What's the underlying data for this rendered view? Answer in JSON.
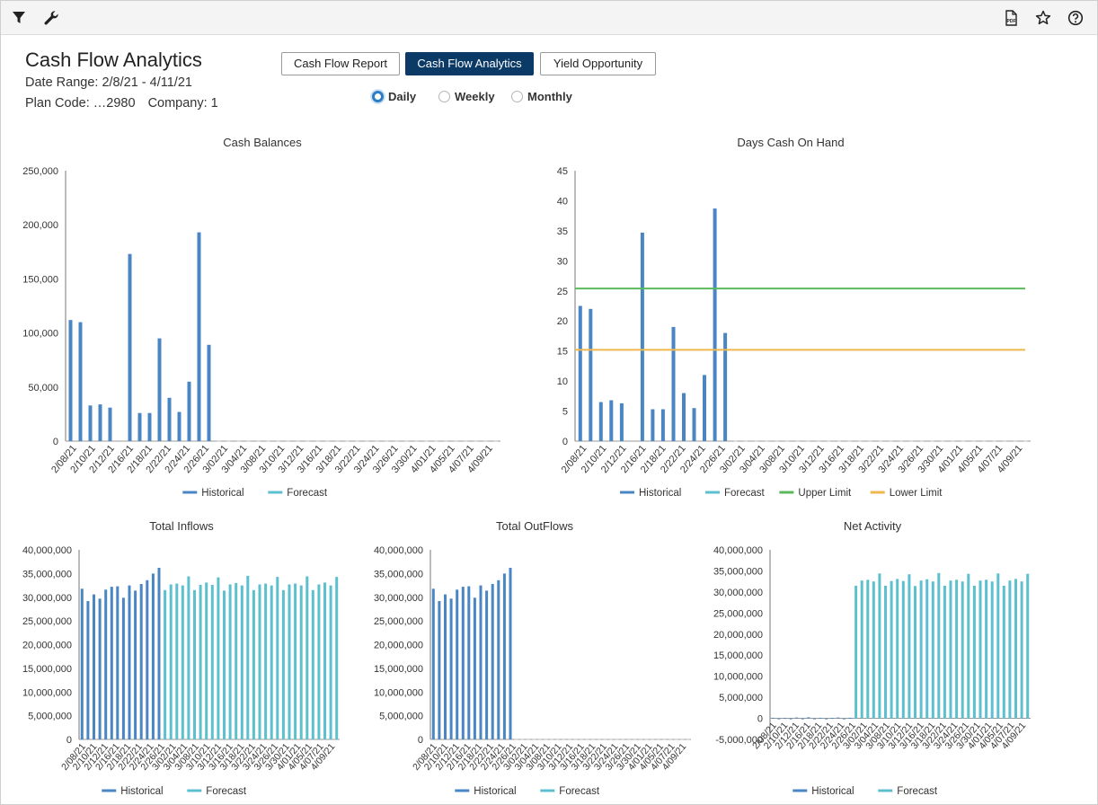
{
  "toolbar": {
    "icons": [
      "filter-icon",
      "wrench-icon",
      "pdf-export-icon",
      "star-icon",
      "help-icon"
    ]
  },
  "header": {
    "title": "Cash Flow Analytics",
    "date_range": "Date Range: 2/8/21 - 4/11/21",
    "plan_code": "Plan Code: …2980",
    "company": "Company: 1"
  },
  "tabs": [
    {
      "label": "Cash Flow Report",
      "active": false
    },
    {
      "label": "Cash Flow Analytics",
      "active": true
    },
    {
      "label": "Yield Opportunity",
      "active": false
    }
  ],
  "periods": [
    {
      "label": "Daily",
      "selected": true
    },
    {
      "label": "Weekly",
      "selected": false
    },
    {
      "label": "Monthly",
      "selected": false
    }
  ],
  "colors": {
    "historical": "#4a86c4",
    "forecast": "#5cc0cf",
    "upper_limit": "#5cb85c",
    "lower_limit": "#f0b74e",
    "accent": "#0b3a66"
  },
  "chart_data": [
    {
      "id": "cash-balances",
      "type": "bar",
      "title": "Cash Balances",
      "x_ticks": [
        "2/08/21",
        "2/10/21",
        "2/12/21",
        "2/16/21",
        "2/18/21",
        "2/22/21",
        "2/24/21",
        "2/26/21",
        "3/02/21",
        "3/04/21",
        "3/08/21",
        "3/10/21",
        "3/12/21",
        "3/16/21",
        "3/18/21",
        "3/22/21",
        "3/24/21",
        "3/26/21",
        "3/30/21",
        "4/01/21",
        "4/05/21",
        "4/07/21",
        "4/09/21"
      ],
      "y_ticks": [
        "0",
        "50,000",
        "100,000",
        "150,000",
        "200,000",
        "250,000"
      ],
      "ylim": [
        0,
        250000
      ],
      "series": [
        {
          "name": "Historical",
          "values": [
            112000,
            110000,
            33000,
            34000,
            31000,
            0,
            173000,
            26000,
            26000,
            95000,
            40000,
            27000,
            55000,
            193000,
            89000
          ]
        },
        {
          "name": "Forecast",
          "values": []
        }
      ]
    },
    {
      "id": "days-cash-on-hand",
      "type": "bar",
      "title": "Days Cash On Hand",
      "x_ticks": [
        "2/08/21",
        "2/10/21",
        "2/12/21",
        "2/16/21",
        "2/18/21",
        "2/22/21",
        "2/24/21",
        "2/26/21",
        "3/02/21",
        "3/04/21",
        "3/08/21",
        "3/10/21",
        "3/12/21",
        "3/16/21",
        "3/18/21",
        "3/22/21",
        "3/24/21",
        "3/26/21",
        "3/30/21",
        "4/01/21",
        "4/05/21",
        "4/07/21",
        "4/09/21"
      ],
      "y_ticks": [
        "0",
        "5",
        "10",
        "15",
        "20",
        "25",
        "30",
        "35",
        "40",
        "45"
      ],
      "ylim": [
        0,
        45
      ],
      "series": [
        {
          "name": "Historical",
          "values": [
            22.5,
            22,
            6.5,
            6.8,
            6.3,
            0,
            34.7,
            5.3,
            5.3,
            19,
            8,
            5.5,
            11,
            38.7,
            18
          ]
        },
        {
          "name": "Forecast",
          "values": []
        },
        {
          "name": "Upper Limit",
          "value": 25.4
        },
        {
          "name": "Lower Limit",
          "value": 15.2
        }
      ]
    },
    {
      "id": "total-inflows",
      "type": "bar",
      "title": "Total Inflows",
      "x_ticks": [
        "2/08/21",
        "2/10/21",
        "2/12/21",
        "2/16/21",
        "2/18/21",
        "2/22/21",
        "2/24/21",
        "2/26/21",
        "3/02/21",
        "3/04/21",
        "3/08/21",
        "3/10/21",
        "3/12/21",
        "3/16/21",
        "3/18/21",
        "3/22/21",
        "3/24/21",
        "3/26/21",
        "3/30/21",
        "4/01/21",
        "4/05/21",
        "4/07/21",
        "4/09/21"
      ],
      "y_ticks": [
        "0",
        "5,000,000",
        "10,000,000",
        "15,000,000",
        "20,000,000",
        "25,000,000",
        "30,000,000",
        "35,000,000",
        "40,000,000"
      ],
      "ylim": [
        0,
        40000000
      ],
      "series": [
        {
          "name": "Historical",
          "values": [
            31800000,
            29200000,
            30600000,
            29700000,
            31600000,
            32200000,
            32300000,
            29900000,
            32500000,
            31400000,
            32800000,
            33600000,
            35000000,
            36200000
          ]
        },
        {
          "name": "Forecast",
          "values": [
            31500000,
            32700000,
            32900000,
            32500000,
            34400000,
            31500000,
            32600000,
            33100000,
            32600000,
            34200000,
            31400000,
            32700000,
            33000000,
            32500000,
            34500000,
            31500000,
            32700000,
            32900000,
            32500000,
            34300000,
            31500000,
            32700000,
            32900000,
            32500000,
            34400000,
            31500000,
            32700000,
            33100000,
            32500000,
            34300000
          ]
        }
      ]
    },
    {
      "id": "total-outflows",
      "type": "bar",
      "title": "Total OutFlows",
      "x_ticks": [
        "2/08/21",
        "2/10/21",
        "2/12/21",
        "2/16/21",
        "2/18/21",
        "2/22/21",
        "2/24/21",
        "2/26/21",
        "3/02/21",
        "3/04/21",
        "3/08/21",
        "3/10/21",
        "3/12/21",
        "3/16/21",
        "3/18/21",
        "3/22/21",
        "3/24/21",
        "3/26/21",
        "3/30/21",
        "4/01/21",
        "4/05/21",
        "4/07/21",
        "4/09/21"
      ],
      "y_ticks": [
        "0",
        "5,000,000",
        "10,000,000",
        "15,000,000",
        "20,000,000",
        "25,000,000",
        "30,000,000",
        "35,000,000",
        "40,000,000"
      ],
      "ylim": [
        0,
        40000000
      ],
      "series": [
        {
          "name": "Historical",
          "values": [
            31800000,
            29200000,
            30600000,
            29700000,
            31600000,
            32200000,
            32300000,
            29900000,
            32500000,
            31400000,
            32800000,
            33600000,
            35000000,
            36200000
          ]
        },
        {
          "name": "Forecast",
          "values": []
        }
      ]
    },
    {
      "id": "net-activity",
      "type": "bar",
      "title": "Net Activity",
      "x_ticks": [
        "2/08/21",
        "2/10/21",
        "2/12/21",
        "2/16/21",
        "2/18/21",
        "2/22/21",
        "2/24/21",
        "2/26/21",
        "3/02/21",
        "3/04/21",
        "3/08/21",
        "3/10/21",
        "3/12/21",
        "3/16/21",
        "3/18/21",
        "3/22/21",
        "3/24/21",
        "3/26/21",
        "3/30/21",
        "4/01/21",
        "4/05/21",
        "4/07/21",
        "4/09/21"
      ],
      "y_ticks": [
        "-5,000,000",
        "0",
        "5,000,000",
        "10,000,000",
        "15,000,000",
        "20,000,000",
        "25,000,000",
        "30,000,000",
        "35,000,000",
        "40,000,000"
      ],
      "ylim": [
        -5000000,
        40000000
      ],
      "series": [
        {
          "name": "Historical",
          "values": [
            150000,
            -200000,
            100000,
            -150000,
            200000,
            -100000,
            250000,
            -100000,
            150000,
            -150000,
            100000,
            200000,
            -100000,
            150000
          ]
        },
        {
          "name": "Forecast",
          "values": [
            31500000,
            32700000,
            32900000,
            32500000,
            34400000,
            31500000,
            32600000,
            33100000,
            32600000,
            34200000,
            31400000,
            32700000,
            33000000,
            32500000,
            34500000,
            31500000,
            32700000,
            32900000,
            32500000,
            34300000,
            31500000,
            32700000,
            32900000,
            32500000,
            34400000,
            31500000,
            32700000,
            33100000,
            32500000,
            34300000
          ]
        }
      ]
    }
  ]
}
